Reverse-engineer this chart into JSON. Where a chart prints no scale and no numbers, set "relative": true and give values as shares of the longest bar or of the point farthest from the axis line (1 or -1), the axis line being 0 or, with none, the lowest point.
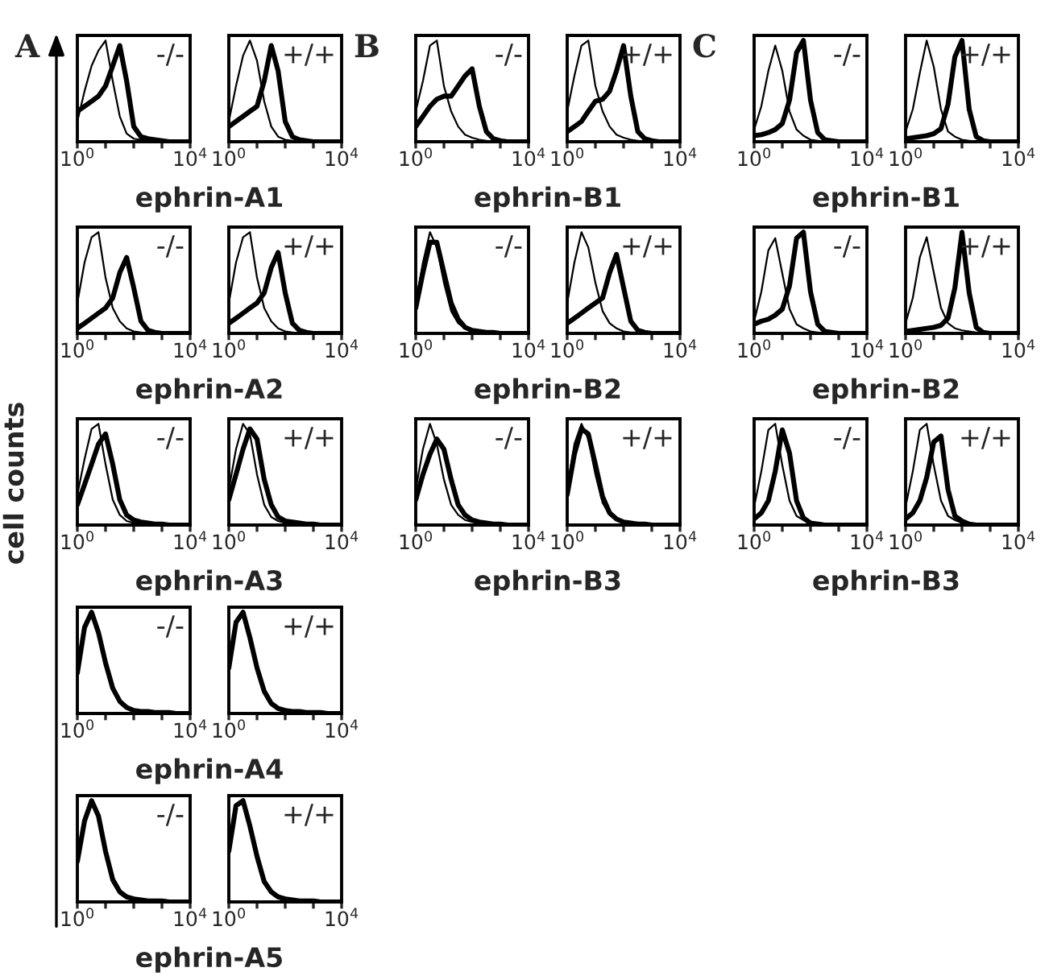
{
  "chart_data": [
    {
      "type": "line",
      "relative": true,
      "log": "x",
      "xlim": [
        1,
        10000
      ],
      "xticks": [
        {
          "value": 1,
          "label": "10$^{0}$"
        },
        {
          "value": 10,
          "label": null
        },
        {
          "value": 100,
          "label": null
        },
        {
          "value": 1000,
          "label": null
        },
        {
          "value": 10000,
          "label": "10$^{4}$"
        }
      ],
      "xlabel": "ephrin-A1",
      "annotations": [
        "A",
        "-/-"
      ],
      "x": [
        1,
        1.8,
        3.2,
        5.6,
        10,
        18,
        32,
        56,
        100,
        180,
        320,
        560,
        1000,
        1800,
        3200,
        5600,
        10000
      ],
      "series": [
        {
          "color": "#000000",
          "values": [
            0.2,
            0.5,
            0.75,
            0.9,
            1.0,
            0.6,
            0.25,
            0.08,
            0.03,
            0.02,
            0.01,
            0,
            0,
            0,
            0,
            0,
            0
          ]
        },
        {
          "color": "#000000",
          "values": [
            0.3,
            0.35,
            0.4,
            0.45,
            0.55,
            0.75,
            0.95,
            0.6,
            0.15,
            0.05,
            0.03,
            0.02,
            0.01,
            0,
            0,
            0,
            0
          ]
        }
      ]
    },
    {
      "type": "line",
      "relative": true,
      "log": "x",
      "xlim": [
        1,
        10000
      ],
      "xticks": [
        {
          "value": 1,
          "label": "10$^{0}$"
        },
        {
          "value": 10,
          "label": null
        },
        {
          "value": 100,
          "label": null
        },
        {
          "value": 1000,
          "label": null
        },
        {
          "value": 10000,
          "label": "10$^{4}$"
        }
      ],
      "annotations": [
        "+/+"
      ],
      "x": [
        1,
        1.8,
        3.2,
        5.6,
        10,
        18,
        32,
        56,
        100,
        180,
        320,
        560,
        1000,
        1800,
        3200,
        5600,
        10000
      ],
      "series": [
        {
          "color": "#000000",
          "values": [
            0.2,
            0.55,
            0.85,
            1.0,
            0.8,
            0.4,
            0.15,
            0.05,
            0.02,
            0.01,
            0,
            0,
            0,
            0,
            0,
            0,
            0
          ]
        },
        {
          "color": "#000000",
          "values": [
            0.15,
            0.2,
            0.25,
            0.3,
            0.35,
            0.6,
            0.95,
            0.7,
            0.2,
            0.05,
            0.02,
            0.01,
            0,
            0,
            0,
            0,
            0
          ]
        }
      ]
    },
    {
      "type": "line",
      "relative": true,
      "log": "x",
      "xlim": [
        1,
        10000
      ],
      "xticks": [
        {
          "value": 1,
          "label": "10$^{0}$"
        },
        {
          "value": 10,
          "label": null
        },
        {
          "value": 100,
          "label": null
        },
        {
          "value": 1000,
          "label": null
        },
        {
          "value": 10000,
          "label": "10$^{4}$"
        }
      ],
      "xlabel": "ephrin-B1",
      "annotations": [
        "B",
        "-/-"
      ],
      "x": [
        1,
        1.8,
        3.2,
        5.6,
        10,
        18,
        32,
        56,
        100,
        180,
        320,
        560,
        1000,
        1800,
        3200,
        5600,
        10000
      ],
      "series": [
        {
          "color": "#000000",
          "values": [
            0.3,
            0.6,
            0.95,
            1.0,
            0.55,
            0.3,
            0.15,
            0.07,
            0.04,
            0.02,
            0.01,
            0,
            0,
            0,
            0,
            0,
            0
          ]
        },
        {
          "color": "#000000",
          "values": [
            0.15,
            0.25,
            0.35,
            0.42,
            0.45,
            0.45,
            0.55,
            0.65,
            0.72,
            0.35,
            0.1,
            0.03,
            0.01,
            0,
            0,
            0,
            0
          ]
        }
      ]
    },
    {
      "type": "line",
      "relative": true,
      "log": "x",
      "xlim": [
        1,
        10000
      ],
      "xticks": [
        {
          "value": 1,
          "label": "10$^{0}$"
        },
        {
          "value": 10,
          "label": null
        },
        {
          "value": 100,
          "label": null
        },
        {
          "value": 1000,
          "label": null
        },
        {
          "value": 10000,
          "label": "10$^{4}$"
        }
      ],
      "annotations": [
        "+/+"
      ],
      "x": [
        1,
        1.8,
        3.2,
        5.6,
        10,
        18,
        32,
        56,
        100,
        180,
        320,
        560,
        1000,
        1800,
        3200,
        5600,
        10000
      ],
      "series": [
        {
          "color": "#000000",
          "values": [
            0.3,
            0.65,
            0.95,
            1.0,
            0.55,
            0.3,
            0.15,
            0.07,
            0.04,
            0.02,
            0.01,
            0,
            0,
            0,
            0,
            0,
            0
          ]
        },
        {
          "color": "#000000",
          "values": [
            0.1,
            0.15,
            0.2,
            0.3,
            0.4,
            0.42,
            0.5,
            0.7,
            0.95,
            0.45,
            0.1,
            0.03,
            0.01,
            0,
            0,
            0,
            0
          ]
        }
      ]
    },
    {
      "type": "line",
      "relative": true,
      "log": "x",
      "xlim": [
        1,
        10000
      ],
      "xticks": [
        {
          "value": 1,
          "label": "10$^{0}$"
        },
        {
          "value": 10,
          "label": null
        },
        {
          "value": 100,
          "label": null
        },
        {
          "value": 1000,
          "label": null
        },
        {
          "value": 10000,
          "label": "10$^{4}$"
        }
      ],
      "xlabel": "ephrin-B1",
      "annotations": [
        "C",
        "-/-"
      ],
      "x": [
        1,
        1.8,
        3.2,
        5.6,
        10,
        18,
        32,
        56,
        100,
        180,
        320,
        560,
        1000,
        1800,
        3200,
        5600,
        10000
      ],
      "series": [
        {
          "color": "#000000",
          "values": [
            0.12,
            0.35,
            0.7,
            0.95,
            0.7,
            0.3,
            0.12,
            0.06,
            0.02,
            0.01,
            0,
            0,
            0,
            0,
            0,
            0,
            0
          ]
        },
        {
          "color": "#000000",
          "values": [
            0.06,
            0.07,
            0.09,
            0.12,
            0.18,
            0.41,
            0.88,
            1.0,
            0.41,
            0.09,
            0.02,
            0.01,
            0,
            0,
            0,
            0,
            0
          ]
        }
      ]
    },
    {
      "type": "line",
      "relative": true,
      "log": "x",
      "xlim": [
        1,
        10000
      ],
      "xticks": [
        {
          "value": 1,
          "label": "10$^{0}$"
        },
        {
          "value": 10,
          "label": null
        },
        {
          "value": 100,
          "label": null
        },
        {
          "value": 1000,
          "label": null
        },
        {
          "value": 10000,
          "label": "10$^{4}$"
        }
      ],
      "annotations": [
        "+/+"
      ],
      "x": [
        1,
        1.8,
        3.2,
        5.6,
        10,
        18,
        32,
        56,
        100,
        180,
        320,
        560,
        1000,
        1800,
        3200,
        5600,
        10000
      ],
      "series": [
        {
          "color": "#000000",
          "values": [
            0.1,
            0.32,
            0.68,
            1.0,
            0.74,
            0.32,
            0.1,
            0.05,
            0.02,
            0.01,
            0,
            0,
            0,
            0,
            0,
            0,
            0
          ]
        },
        {
          "color": "#000000",
          "values": [
            0.03,
            0.04,
            0.05,
            0.06,
            0.08,
            0.13,
            0.37,
            0.84,
            1.0,
            0.32,
            0.05,
            0.01,
            0,
            0,
            0,
            0,
            0
          ]
        }
      ]
    },
    {
      "type": "line",
      "relative": true,
      "log": "x",
      "xlim": [
        1,
        10000
      ],
      "xticks": [
        {
          "value": 1,
          "label": "10$^{0}$"
        },
        {
          "value": 10,
          "label": null
        },
        {
          "value": 100,
          "label": null
        },
        {
          "value": 1000,
          "label": null
        },
        {
          "value": 10000,
          "label": "10$^{4}$"
        }
      ],
      "xlabel": "ephrin-A2",
      "annotations": [
        "-/-"
      ],
      "x": [
        1,
        1.8,
        3.2,
        5.6,
        10,
        18,
        32,
        56,
        100,
        180,
        320,
        560,
        1000,
        1800,
        3200,
        5600,
        10000
      ],
      "series": [
        {
          "color": "#000000",
          "values": [
            0.3,
            0.7,
            0.95,
            1.0,
            0.55,
            0.25,
            0.12,
            0.05,
            0.02,
            0.01,
            0,
            0,
            0,
            0,
            0,
            0,
            0
          ]
        },
        {
          "color": "#000000",
          "values": [
            0.05,
            0.1,
            0.15,
            0.2,
            0.25,
            0.35,
            0.6,
            0.75,
            0.45,
            0.12,
            0.03,
            0.01,
            0,
            0,
            0,
            0,
            0
          ]
        }
      ]
    },
    {
      "type": "line",
      "relative": true,
      "log": "x",
      "xlim": [
        1,
        10000
      ],
      "xticks": [
        {
          "value": 1,
          "label": "10$^{0}$"
        },
        {
          "value": 10,
          "label": null
        },
        {
          "value": 100,
          "label": null
        },
        {
          "value": 1000,
          "label": null
        },
        {
          "value": 10000,
          "label": "10$^{4}$"
        }
      ],
      "annotations": [
        "+/+"
      ],
      "x": [
        1,
        1.8,
        3.2,
        5.6,
        10,
        18,
        32,
        56,
        100,
        180,
        320,
        560,
        1000,
        1800,
        3200,
        5600,
        10000
      ],
      "series": [
        {
          "color": "#000000",
          "values": [
            0.3,
            0.7,
            0.95,
            1.0,
            0.55,
            0.25,
            0.12,
            0.05,
            0.02,
            0.01,
            0,
            0,
            0,
            0,
            0,
            0,
            0
          ]
        },
        {
          "color": "#000000",
          "values": [
            0.1,
            0.15,
            0.2,
            0.25,
            0.3,
            0.4,
            0.65,
            0.8,
            0.4,
            0.1,
            0.03,
            0.01,
            0,
            0,
            0,
            0,
            0
          ]
        }
      ]
    },
    {
      "type": "line",
      "relative": true,
      "log": "x",
      "xlim": [
        1,
        10000
      ],
      "xticks": [
        {
          "value": 1,
          "label": "10$^{0}$"
        },
        {
          "value": 10,
          "label": null
        },
        {
          "value": 100,
          "label": null
        },
        {
          "value": 1000,
          "label": null
        },
        {
          "value": 10000,
          "label": "10$^{4}$"
        }
      ],
      "xlabel": "ephrin-B2",
      "annotations": [
        "-/-"
      ],
      "x": [
        1,
        1.8,
        3.2,
        5.6,
        10,
        18,
        32,
        56,
        100,
        180,
        320,
        560,
        1000,
        1800,
        3200,
        5600,
        10000
      ],
      "series": [
        {
          "color": "#000000",
          "values": [
            0.3,
            0.7,
            1.0,
            0.85,
            0.5,
            0.22,
            0.1,
            0.05,
            0.02,
            0.01,
            0.01,
            0,
            0,
            0,
            0,
            0,
            0
          ]
        },
        {
          "color": "#000000",
          "values": [
            0.25,
            0.6,
            0.9,
            0.9,
            0.6,
            0.3,
            0.14,
            0.06,
            0.03,
            0.02,
            0.01,
            0.01,
            0,
            0,
            0,
            0,
            0
          ]
        }
      ]
    },
    {
      "type": "line",
      "relative": true,
      "log": "x",
      "xlim": [
        1,
        10000
      ],
      "xticks": [
        {
          "value": 1,
          "label": "10$^{0}$"
        },
        {
          "value": 10,
          "label": null
        },
        {
          "value": 100,
          "label": null
        },
        {
          "value": 1000,
          "label": null
        },
        {
          "value": 10000,
          "label": "10$^{4}$"
        }
      ],
      "annotations": [
        "+/+"
      ],
      "x": [
        1,
        1.8,
        3.2,
        5.6,
        10,
        18,
        32,
        56,
        100,
        180,
        320,
        560,
        1000,
        1800,
        3200,
        5600,
        10000
      ],
      "series": [
        {
          "color": "#000000",
          "values": [
            0.3,
            0.7,
            1.0,
            0.85,
            0.5,
            0.22,
            0.1,
            0.05,
            0.02,
            0.01,
            0.01,
            0,
            0,
            0,
            0,
            0,
            0
          ]
        },
        {
          "color": "#000000",
          "values": [
            0.1,
            0.15,
            0.2,
            0.25,
            0.3,
            0.35,
            0.6,
            0.78,
            0.45,
            0.12,
            0.03,
            0.01,
            0,
            0,
            0,
            0,
            0
          ]
        }
      ]
    },
    {
      "type": "line",
      "relative": true,
      "log": "x",
      "xlim": [
        1,
        10000
      ],
      "xticks": [
        {
          "value": 1,
          "label": "10$^{0}$"
        },
        {
          "value": 10,
          "label": null
        },
        {
          "value": 100,
          "label": null
        },
        {
          "value": 1000,
          "label": null
        },
        {
          "value": 10000,
          "label": "10$^{4}$"
        }
      ],
      "xlabel": "ephrin-B2",
      "annotations": [
        "-/-"
      ],
      "x": [
        1,
        1.8,
        3.2,
        5.6,
        10,
        18,
        32,
        56,
        100,
        180,
        320,
        560,
        1000,
        1800,
        3200,
        5600,
        10000
      ],
      "series": [
        {
          "color": "#000000",
          "values": [
            0.12,
            0.41,
            0.82,
            0.94,
            0.59,
            0.24,
            0.09,
            0.05,
            0.02,
            0.01,
            0,
            0,
            0,
            0,
            0,
            0,
            0
          ]
        },
        {
          "color": "#000000",
          "values": [
            0.09,
            0.12,
            0.14,
            0.18,
            0.24,
            0.47,
            0.94,
            1.0,
            0.41,
            0.09,
            0.02,
            0.01,
            0,
            0,
            0,
            0,
            0
          ]
        }
      ]
    },
    {
      "type": "line",
      "relative": true,
      "log": "x",
      "xlim": [
        1,
        10000
      ],
      "xticks": [
        {
          "value": 1,
          "label": "10$^{0}$"
        },
        {
          "value": 10,
          "label": null
        },
        {
          "value": 100,
          "label": null
        },
        {
          "value": 1000,
          "label": null
        },
        {
          "value": 10000,
          "label": "10$^{4}$"
        }
      ],
      "annotations": [
        "+/+"
      ],
      "x": [
        1,
        1.8,
        3.2,
        5.6,
        10,
        18,
        32,
        56,
        100,
        180,
        320,
        560,
        1000,
        1800,
        3200,
        5600,
        10000
      ],
      "series": [
        {
          "color": "#000000",
          "values": [
            0.1,
            0.35,
            0.75,
            0.95,
            0.6,
            0.25,
            0.1,
            0.05,
            0.03,
            0.02,
            0.01,
            0,
            0,
            0,
            0,
            0,
            0
          ]
        },
        {
          "color": "#000000",
          "values": [
            0.02,
            0.03,
            0.04,
            0.05,
            0.06,
            0.08,
            0.15,
            0.45,
            1.0,
            0.4,
            0.06,
            0.01,
            0,
            0,
            0,
            0,
            0
          ]
        }
      ]
    },
    {
      "type": "line",
      "relative": true,
      "log": "x",
      "xlim": [
        1,
        10000
      ],
      "xticks": [
        {
          "value": 1,
          "label": "10$^{0}$"
        },
        {
          "value": 10,
          "label": null
        },
        {
          "value": 100,
          "label": null
        },
        {
          "value": 1000,
          "label": null
        },
        {
          "value": 10000,
          "label": "10$^{4}$"
        }
      ],
      "xlabel": "ephrin-A3",
      "ylabel": "cell counts",
      "annotations": [
        "-/-"
      ],
      "x": [
        1,
        1.8,
        3.2,
        5.6,
        10,
        18,
        32,
        56,
        100,
        180,
        320,
        560,
        1000,
        1800,
        3200,
        5600,
        10000
      ],
      "series": [
        {
          "color": "#000000",
          "values": [
            0.3,
            0.65,
            0.95,
            1.0,
            0.6,
            0.25,
            0.1,
            0.04,
            0.02,
            0.01,
            0.01,
            0,
            0,
            0,
            0,
            0,
            0
          ]
        },
        {
          "color": "#000000",
          "values": [
            0.2,
            0.4,
            0.6,
            0.8,
            0.9,
            0.6,
            0.25,
            0.1,
            0.05,
            0.03,
            0.02,
            0.01,
            0.01,
            0,
            0,
            0,
            0
          ]
        }
      ]
    },
    {
      "type": "line",
      "relative": true,
      "log": "x",
      "xlim": [
        1,
        10000
      ],
      "xticks": [
        {
          "value": 1,
          "label": "10$^{0}$"
        },
        {
          "value": 10,
          "label": null
        },
        {
          "value": 100,
          "label": null
        },
        {
          "value": 1000,
          "label": null
        },
        {
          "value": 10000,
          "label": "10$^{4}$"
        }
      ],
      "annotations": [
        "+/+"
      ],
      "x": [
        1,
        1.8,
        3.2,
        5.6,
        10,
        18,
        32,
        56,
        100,
        180,
        320,
        560,
        1000,
        1800,
        3200,
        5600,
        10000
      ],
      "series": [
        {
          "color": "#000000",
          "values": [
            0.35,
            0.75,
            1.0,
            0.9,
            0.5,
            0.2,
            0.08,
            0.04,
            0.02,
            0.01,
            0.01,
            0,
            0,
            0,
            0,
            0,
            0
          ]
        },
        {
          "color": "#000000",
          "values": [
            0.25,
            0.5,
            0.75,
            0.95,
            0.85,
            0.45,
            0.2,
            0.08,
            0.04,
            0.03,
            0.02,
            0.01,
            0.01,
            0,
            0,
            0,
            0
          ]
        }
      ]
    },
    {
      "type": "line",
      "relative": true,
      "log": "x",
      "xlim": [
        1,
        10000
      ],
      "xticks": [
        {
          "value": 1,
          "label": "10$^{0}$"
        },
        {
          "value": 10,
          "label": null
        },
        {
          "value": 100,
          "label": null
        },
        {
          "value": 1000,
          "label": null
        },
        {
          "value": 10000,
          "label": "10$^{4}$"
        }
      ],
      "xlabel": "ephrin-B3",
      "annotations": [
        "-/-"
      ],
      "x": [
        1,
        1.8,
        3.2,
        5.6,
        10,
        18,
        32,
        56,
        100,
        180,
        320,
        560,
        1000,
        1800,
        3200,
        5600,
        10000
      ],
      "series": [
        {
          "color": "#000000",
          "values": [
            0.35,
            0.75,
            1.0,
            0.8,
            0.45,
            0.2,
            0.1,
            0.05,
            0.03,
            0.02,
            0.01,
            0,
            0,
            0,
            0,
            0,
            0
          ]
        },
        {
          "color": "#000000",
          "values": [
            0.25,
            0.5,
            0.7,
            0.85,
            0.75,
            0.45,
            0.2,
            0.1,
            0.05,
            0.03,
            0.02,
            0.01,
            0.01,
            0,
            0,
            0,
            0
          ]
        }
      ]
    },
    {
      "type": "line",
      "relative": true,
      "log": "x",
      "xlim": [
        1,
        10000
      ],
      "xticks": [
        {
          "value": 1,
          "label": "10$^{0}$"
        },
        {
          "value": 10,
          "label": null
        },
        {
          "value": 100,
          "label": null
        },
        {
          "value": 1000,
          "label": null
        },
        {
          "value": 10000,
          "label": "10$^{4}$"
        }
      ],
      "annotations": [
        "+/+"
      ],
      "x": [
        1,
        1.8,
        3.2,
        5.6,
        10,
        18,
        32,
        56,
        100,
        180,
        320,
        560,
        1000,
        1800,
        3200,
        5600,
        10000
      ],
      "series": [
        {
          "color": "#000000",
          "values": [
            0.35,
            0.8,
            1.0,
            0.85,
            0.5,
            0.22,
            0.1,
            0.05,
            0.03,
            0.02,
            0.01,
            0,
            0,
            0,
            0,
            0,
            0
          ]
        },
        {
          "color": "#000000",
          "values": [
            0.3,
            0.7,
            0.95,
            0.9,
            0.6,
            0.28,
            0.12,
            0.06,
            0.03,
            0.02,
            0.01,
            0.01,
            0,
            0,
            0,
            0,
            0
          ]
        }
      ]
    },
    {
      "type": "line",
      "relative": true,
      "log": "x",
      "xlim": [
        1,
        10000
      ],
      "xticks": [
        {
          "value": 1,
          "label": "10$^{0}$"
        },
        {
          "value": 10,
          "label": null
        },
        {
          "value": 100,
          "label": null
        },
        {
          "value": 1000,
          "label": null
        },
        {
          "value": 10000,
          "label": "10$^{4}$"
        }
      ],
      "xlabel": "ephrin-B3",
      "annotations": [
        "-/-"
      ],
      "x": [
        1,
        1.8,
        3.2,
        5.6,
        10,
        18,
        32,
        56,
        100,
        180,
        320,
        560,
        1000,
        1800,
        3200,
        5600,
        10000
      ],
      "series": [
        {
          "color": "#000000",
          "values": [
            0.18,
            0.53,
            0.94,
            1.0,
            0.59,
            0.24,
            0.09,
            0.05,
            0.02,
            0.01,
            0,
            0,
            0,
            0,
            0,
            0,
            0
          ]
        },
        {
          "color": "#000000",
          "values": [
            0.06,
            0.12,
            0.24,
            0.53,
            0.94,
            0.71,
            0.24,
            0.07,
            0.02,
            0.01,
            0,
            0,
            0,
            0,
            0,
            0,
            0
          ]
        }
      ]
    },
    {
      "type": "line",
      "relative": true,
      "log": "x",
      "xlim": [
        1,
        10000
      ],
      "xticks": [
        {
          "value": 1,
          "label": "10$^{0}$"
        },
        {
          "value": 10,
          "label": null
        },
        {
          "value": 100,
          "label": null
        },
        {
          "value": 1000,
          "label": null
        },
        {
          "value": 10000,
          "label": "10$^{4}$"
        }
      ],
      "annotations": [
        "+/+"
      ],
      "x": [
        1,
        1.8,
        3.2,
        5.6,
        10,
        18,
        32,
        56,
        100,
        180,
        320,
        560,
        1000,
        1800,
        3200,
        5600,
        10000
      ],
      "series": [
        {
          "color": "#000000",
          "values": [
            0.18,
            0.53,
            0.94,
            1.0,
            0.59,
            0.24,
            0.09,
            0.05,
            0.02,
            0.01,
            0,
            0,
            0,
            0,
            0,
            0,
            0
          ]
        },
        {
          "color": "#000000",
          "values": [
            0.06,
            0.12,
            0.24,
            0.47,
            0.82,
            0.88,
            0.35,
            0.09,
            0.04,
            0.01,
            0,
            0,
            0,
            0,
            0,
            0,
            0
          ]
        }
      ]
    },
    {
      "type": "line",
      "relative": true,
      "log": "x",
      "xlim": [
        1,
        10000
      ],
      "xticks": [
        {
          "value": 1,
          "label": "10$^{0}$"
        },
        {
          "value": 10,
          "label": null
        },
        {
          "value": 100,
          "label": null
        },
        {
          "value": 1000,
          "label": null
        },
        {
          "value": 10000,
          "label": "10$^{4}$"
        }
      ],
      "xlabel": "ephrin-A4",
      "annotations": [
        "-/-"
      ],
      "x": [
        1,
        1.8,
        3.2,
        5.6,
        10,
        18,
        32,
        56,
        100,
        180,
        320,
        560,
        1000,
        1800,
        3200,
        5600,
        10000
      ],
      "series": [
        {
          "color": "#000000",
          "values": [
            0.4,
            0.85,
            1.0,
            0.8,
            0.5,
            0.25,
            0.12,
            0.06,
            0.03,
            0.02,
            0.02,
            0.01,
            0.01,
            0.01,
            0,
            0,
            0
          ]
        }
      ]
    },
    {
      "type": "line",
      "relative": true,
      "log": "x",
      "xlim": [
        1,
        10000
      ],
      "xticks": [
        {
          "value": 1,
          "label": "10$^{0}$"
        },
        {
          "value": 10,
          "label": null
        },
        {
          "value": 100,
          "label": null
        },
        {
          "value": 1000,
          "label": null
        },
        {
          "value": 10000,
          "label": "10$^{4}$"
        }
      ],
      "annotations": [
        "+/+"
      ],
      "x": [
        1,
        1.8,
        3.2,
        5.6,
        10,
        18,
        32,
        56,
        100,
        180,
        320,
        560,
        1000,
        1800,
        3200,
        5600,
        10000
      ],
      "series": [
        {
          "color": "#000000",
          "values": [
            0.45,
            0.9,
            1.0,
            0.75,
            0.45,
            0.22,
            0.1,
            0.05,
            0.03,
            0.02,
            0.02,
            0.01,
            0.01,
            0.01,
            0,
            0,
            0
          ]
        }
      ]
    },
    {
      "type": "line",
      "relative": true,
      "log": "x",
      "xlim": [
        1,
        10000
      ],
      "xticks": [
        {
          "value": 1,
          "label": "10$^{0}$"
        },
        {
          "value": 10,
          "label": null
        },
        {
          "value": 100,
          "label": null
        },
        {
          "value": 1000,
          "label": null
        },
        {
          "value": 10000,
          "label": "10$^{4}$"
        }
      ],
      "xlabel": "ephrin-A5",
      "annotations": [
        "-/-"
      ],
      "x": [
        1,
        1.8,
        3.2,
        5.6,
        10,
        18,
        32,
        56,
        100,
        180,
        320,
        560,
        1000,
        1800,
        3200,
        5600,
        10000
      ],
      "series": [
        {
          "color": "#000000",
          "values": [
            0.4,
            0.8,
            1.0,
            0.85,
            0.5,
            0.22,
            0.1,
            0.05,
            0.03,
            0.02,
            0.01,
            0.01,
            0.01,
            0,
            0,
            0,
            0
          ]
        }
      ]
    },
    {
      "type": "line",
      "relative": true,
      "log": "x",
      "xlim": [
        1,
        10000
      ],
      "xticks": [
        {
          "value": 1,
          "label": "10$^{0}$"
        },
        {
          "value": 10,
          "label": null
        },
        {
          "value": 100,
          "label": null
        },
        {
          "value": 1000,
          "label": null
        },
        {
          "value": 10000,
          "label": "10$^{4}$"
        }
      ],
      "annotations": [
        "+/+"
      ],
      "x": [
        1,
        1.8,
        3.2,
        5.6,
        10,
        18,
        32,
        56,
        100,
        180,
        320,
        560,
        1000,
        1800,
        3200,
        5600,
        10000
      ],
      "series": [
        {
          "color": "#000000",
          "values": [
            0.5,
            0.95,
            1.0,
            0.75,
            0.45,
            0.2,
            0.1,
            0.05,
            0.03,
            0.02,
            0.01,
            0.01,
            0.01,
            0,
            0,
            0,
            0
          ]
        }
      ]
    }
  ]
}
